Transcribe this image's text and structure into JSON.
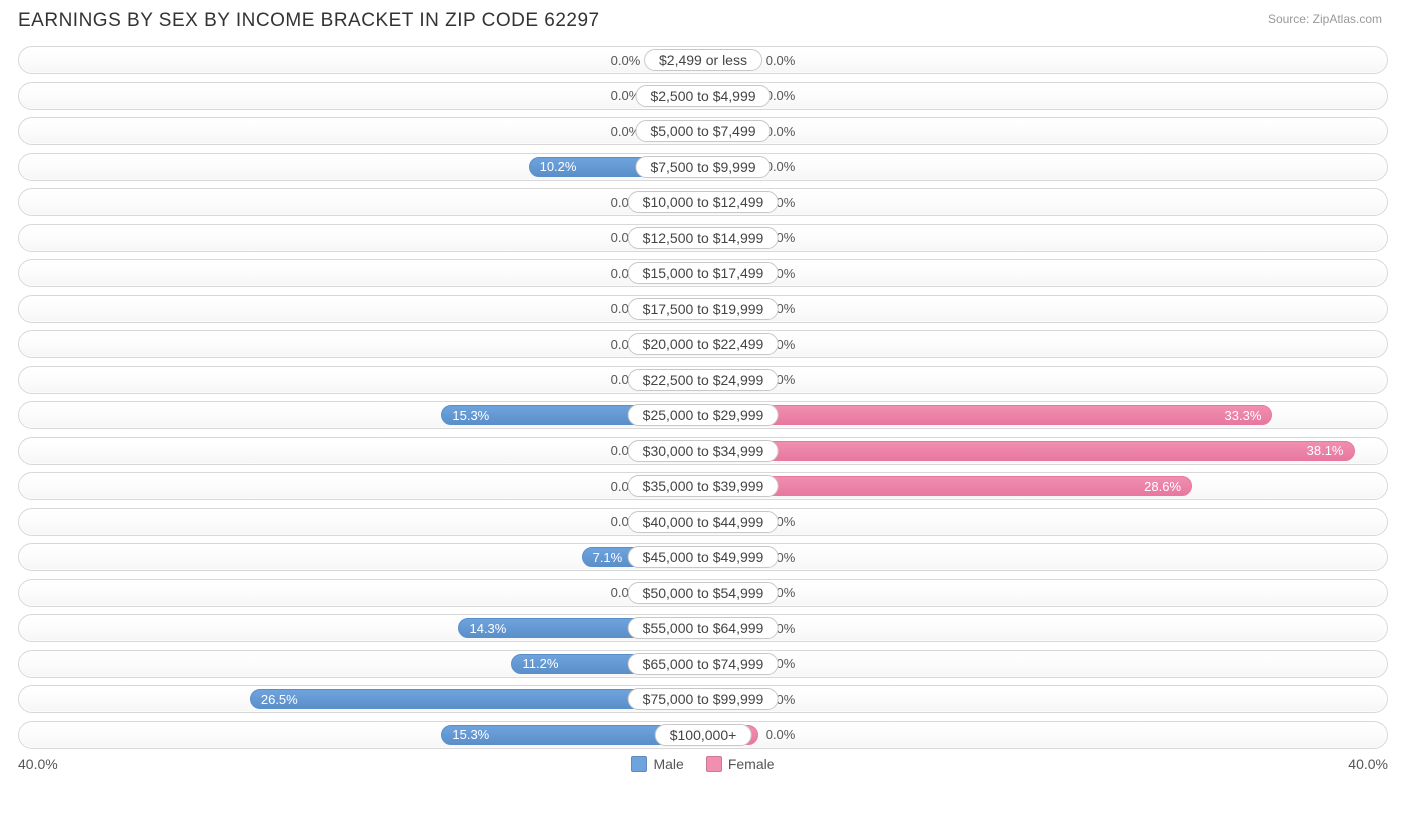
{
  "title": "EARNINGS BY SEX BY INCOME BRACKET IN ZIP CODE 62297",
  "source": "Source: ZipAtlas.com",
  "axis_max_pct": 40.0,
  "axis_max_label_left": "40.0%",
  "axis_max_label_right": "40.0%",
  "min_bar_pct": 3.2,
  "colors": {
    "male_fill": "#6fa3dd",
    "male_border": "#5b8fca",
    "female_fill": "#f08fb0",
    "female_border": "#e878a0",
    "track_border": "#d8d8d8",
    "text": "#555555",
    "bg": "#ffffff"
  },
  "legend": {
    "male": "Male",
    "female": "Female"
  },
  "rows": [
    {
      "label": "$2,499 or less",
      "male": 0.0,
      "female": 0.0
    },
    {
      "label": "$2,500 to $4,999",
      "male": 0.0,
      "female": 0.0
    },
    {
      "label": "$5,000 to $7,499",
      "male": 0.0,
      "female": 0.0
    },
    {
      "label": "$7,500 to $9,999",
      "male": 10.2,
      "female": 0.0
    },
    {
      "label": "$10,000 to $12,499",
      "male": 0.0,
      "female": 0.0
    },
    {
      "label": "$12,500 to $14,999",
      "male": 0.0,
      "female": 0.0
    },
    {
      "label": "$15,000 to $17,499",
      "male": 0.0,
      "female": 0.0
    },
    {
      "label": "$17,500 to $19,999",
      "male": 0.0,
      "female": 0.0
    },
    {
      "label": "$20,000 to $22,499",
      "male": 0.0,
      "female": 0.0
    },
    {
      "label": "$22,500 to $24,999",
      "male": 0.0,
      "female": 0.0
    },
    {
      "label": "$25,000 to $29,999",
      "male": 15.3,
      "female": 33.3
    },
    {
      "label": "$30,000 to $34,999",
      "male": 0.0,
      "female": 38.1
    },
    {
      "label": "$35,000 to $39,999",
      "male": 0.0,
      "female": 28.6
    },
    {
      "label": "$40,000 to $44,999",
      "male": 0.0,
      "female": 0.0
    },
    {
      "label": "$45,000 to $49,999",
      "male": 7.1,
      "female": 0.0
    },
    {
      "label": "$50,000 to $54,999",
      "male": 0.0,
      "female": 0.0
    },
    {
      "label": "$55,000 to $64,999",
      "male": 14.3,
      "female": 0.0
    },
    {
      "label": "$65,000 to $74,999",
      "male": 11.2,
      "female": 0.0
    },
    {
      "label": "$75,000 to $99,999",
      "male": 26.5,
      "female": 0.0
    },
    {
      "label": "$100,000+",
      "male": 15.3,
      "female": 0.0
    }
  ]
}
